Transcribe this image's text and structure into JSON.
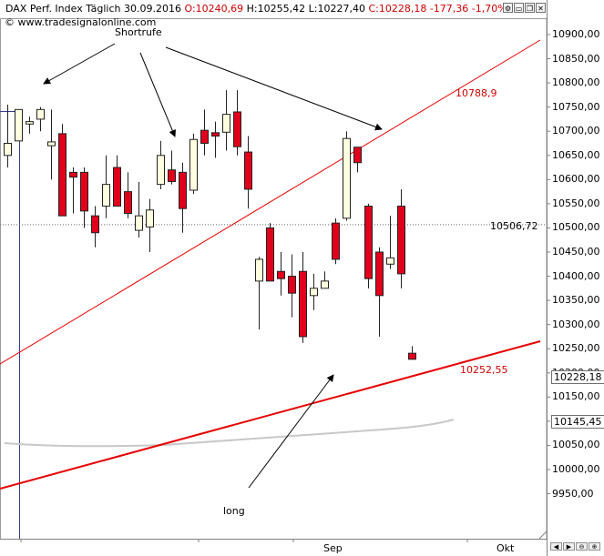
{
  "header": {
    "label": "DAX Perf. Index Täglich",
    "date": "30.09.2016",
    "open": "O:10240,69",
    "high": "H:10255,42",
    "low": "L:10227,40",
    "close": "C:10228,18",
    "change": "-177,36 -1,70%"
  },
  "watermark": "© www.tradesignalonline.com",
  "window_buttons": [
    "⚙",
    "▭",
    "❐",
    "✕"
  ],
  "nav_buttons": [
    "◀",
    "▶",
    "⊖",
    "⊕"
  ],
  "colors": {
    "bull_fill": "#ffffe0",
    "bear_fill": "#e0001b",
    "trendline": "#e60000",
    "ma": "#c8c8c8",
    "accent_text": "#cc0000"
  },
  "chart_data": {
    "type": "candlestick",
    "title": "DAX Perf. Index Täglich",
    "x_labels": [
      "Sep",
      "Okt"
    ],
    "y_ticks": [
      9950,
      10000,
      10050,
      10100,
      10150,
      10200,
      10250,
      10300,
      10350,
      10400,
      10450,
      10500,
      10550,
      10600,
      10650,
      10700,
      10750,
      10800,
      10850,
      10900
    ],
    "y_tick_labels": [
      "9950,00",
      "10000,00",
      "10050,00",
      "10100,00",
      "10150,00",
      "10200,00",
      "10250,00",
      "10300,00",
      "10350,00",
      "10400,00",
      "10450,00",
      "10500,00",
      "10550,00",
      "10600,00",
      "10650,00",
      "10700,00",
      "10750,00",
      "10800,00",
      "10850,00",
      "10900,00"
    ],
    "ylim": [
      9920,
      10940
    ],
    "horizontal_line": {
      "value": 10506.72,
      "label": "10506,72"
    },
    "price_markers": [
      {
        "value": 10228.18,
        "label": "10228,18"
      },
      {
        "value": 10145.45,
        "label": "10145,45"
      }
    ],
    "candles": [
      {
        "o": 10650,
        "h": 10755,
        "l": 10625,
        "c": 10675
      },
      {
        "o": 10680,
        "h": 10745,
        "l": 10680,
        "c": 10745
      },
      {
        "o": 10715,
        "h": 10730,
        "l": 10695,
        "c": 10720
      },
      {
        "o": 10725,
        "h": 10750,
        "l": 10700,
        "c": 10745
      },
      {
        "o": 10670,
        "h": 10745,
        "l": 10600,
        "c": 10678
      },
      {
        "o": 10695,
        "h": 10715,
        "l": 10530,
        "c": 10525
      },
      {
        "o": 10615,
        "h": 10625,
        "l": 10530,
        "c": 10605
      },
      {
        "o": 10615,
        "h": 10625,
        "l": 10500,
        "c": 10535
      },
      {
        "o": 10525,
        "h": 10545,
        "l": 10460,
        "c": 10490
      },
      {
        "o": 10545,
        "h": 10650,
        "l": 10520,
        "c": 10590
      },
      {
        "o": 10625,
        "h": 10650,
        "l": 10550,
        "c": 10545
      },
      {
        "o": 10575,
        "h": 10615,
        "l": 10520,
        "c": 10530
      },
      {
        "o": 10495,
        "h": 10595,
        "l": 10480,
        "c": 10525
      },
      {
        "o": 10502,
        "h": 10560,
        "l": 10450,
        "c": 10537
      },
      {
        "o": 10590,
        "h": 10680,
        "l": 10580,
        "c": 10650
      },
      {
        "o": 10620,
        "h": 10660,
        "l": 10590,
        "c": 10596
      },
      {
        "o": 10615,
        "h": 10635,
        "l": 10490,
        "c": 10540
      },
      {
        "o": 10578,
        "h": 10695,
        "l": 10570,
        "c": 10683
      },
      {
        "o": 10702,
        "h": 10745,
        "l": 10650,
        "c": 10675
      },
      {
        "o": 10697,
        "h": 10720,
        "l": 10645,
        "c": 10690
      },
      {
        "o": 10698,
        "h": 10785,
        "l": 10660,
        "c": 10735
      },
      {
        "o": 10740,
        "h": 10785,
        "l": 10650,
        "c": 10668
      },
      {
        "o": 10657,
        "h": 10690,
        "l": 10540,
        "c": 10580
      },
      {
        "o": 10390,
        "h": 10440,
        "l": 10290,
        "c": 10435
      },
      {
        "o": 10500,
        "h": 10510,
        "l": 10390,
        "c": 10390
      },
      {
        "o": 10410,
        "h": 10450,
        "l": 10360,
        "c": 10395
      },
      {
        "o": 10400,
        "h": 10445,
        "l": 10315,
        "c": 10365
      },
      {
        "o": 10410,
        "h": 10450,
        "l": 10262,
        "c": 10275
      },
      {
        "o": 10360,
        "h": 10405,
        "l": 10330,
        "c": 10375
      },
      {
        "o": 10375,
        "h": 10410,
        "l": 10375,
        "c": 10390
      },
      {
        "o": 10510,
        "h": 10520,
        "l": 10425,
        "c": 10435
      },
      {
        "o": 10520,
        "h": 10700,
        "l": 10515,
        "c": 10685
      },
      {
        "o": 10667,
        "h": 10667,
        "l": 10615,
        "c": 10635
      },
      {
        "o": 10545,
        "h": 10550,
        "l": 10375,
        "c": 10395
      },
      {
        "o": 10450,
        "h": 10460,
        "l": 10275,
        "c": 10360
      },
      {
        "o": 10425,
        "h": 10525,
        "l": 10415,
        "c": 10438
      },
      {
        "o": 10545,
        "h": 10580,
        "l": 10375,
        "c": 10405
      },
      {
        "o": 10240.69,
        "h": 10255.42,
        "l": 10227.4,
        "c": 10228.18
      }
    ]
  },
  "annotations": {
    "shortrufe": "Shortrufe",
    "long": "long",
    "level_top": "10788,9",
    "level_bottom": "10252,55"
  },
  "x_axis": {
    "sep": "Sep",
    "okt": "Okt"
  }
}
